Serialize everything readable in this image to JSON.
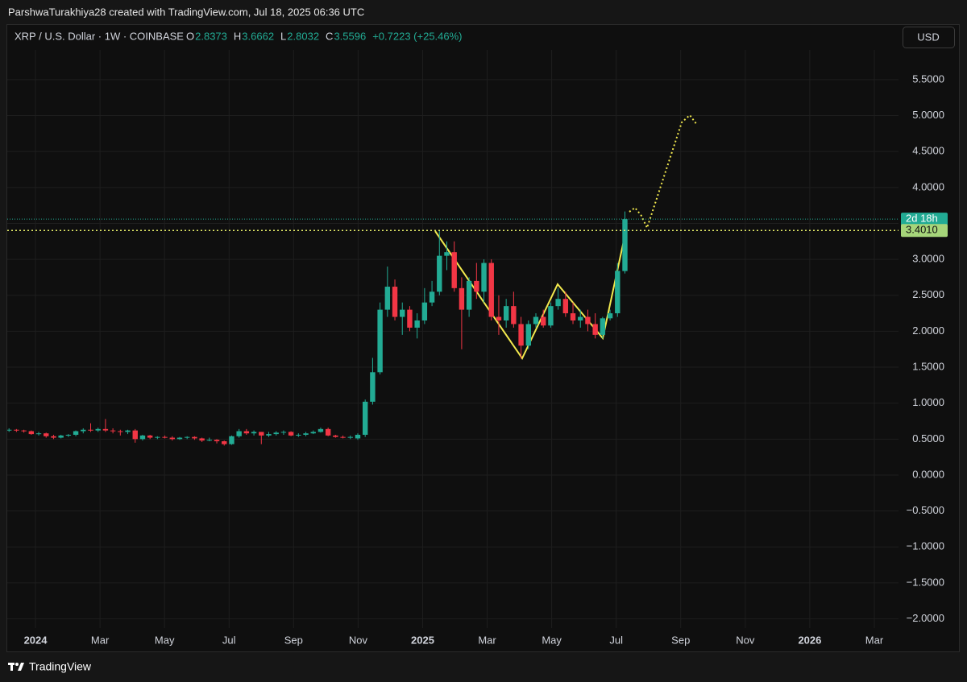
{
  "header": {
    "credit": "ParshwaTurakhiya28 created with TradingView.com, Jul 18, 2025 06:36 UTC"
  },
  "chart_data": {
    "type": "candlestick",
    "symbol": "XRP / U.S. Dollar · 1W · COINBASE",
    "ohlc_labels": [
      "O",
      "H",
      "L",
      "C"
    ],
    "change": "+0.7223 (+25.46%)",
    "currency": "USD",
    "countdown": "2d 18h",
    "level": {
      "value": 3.401,
      "label": "3.4010"
    },
    "up_color": "#22ab94",
    "down_color": "#f23645",
    "grid": true,
    "xlim": [
      -0.875,
      26.75
    ],
    "xticks": [
      {
        "value": 0,
        "label": "2024"
      },
      {
        "value": 2,
        "label": "Mar"
      },
      {
        "value": 4,
        "label": "May"
      },
      {
        "value": 6,
        "label": "Jul"
      },
      {
        "value": 8,
        "label": "Sep"
      },
      {
        "value": 10,
        "label": "Nov"
      },
      {
        "value": 12,
        "label": "2025"
      },
      {
        "value": 14,
        "label": "Mar"
      },
      {
        "value": 16,
        "label": "May"
      },
      {
        "value": 18,
        "label": "Jul"
      },
      {
        "value": 20,
        "label": "Sep"
      },
      {
        "value": 22,
        "label": "Nov"
      },
      {
        "value": 24,
        "label": "2026"
      },
      {
        "value": 26,
        "label": "Mar"
      }
    ],
    "ylim": [
      -2.128,
      5.913
    ],
    "yticks": [
      {
        "value": 5.5,
        "label": "5.5000"
      },
      {
        "value": 5,
        "label": "5.0000"
      },
      {
        "value": 4.5,
        "label": "4.5000"
      },
      {
        "value": 4,
        "label": "4.0000"
      },
      {
        "value": 3.5,
        "label": "3.5000"
      },
      {
        "value": 3,
        "label": "3.0000"
      },
      {
        "value": 2.5,
        "label": "2.5000"
      },
      {
        "value": 2,
        "label": "2.0000"
      },
      {
        "value": 1.5,
        "label": "1.5000"
      },
      {
        "value": 1,
        "label": "1.0000"
      },
      {
        "value": 0.5,
        "label": "0.5000"
      },
      {
        "value": 0,
        "label": "0.0000"
      },
      {
        "value": -0.5,
        "label": "−0.5000"
      },
      {
        "value": -1,
        "label": "−1.0000"
      },
      {
        "value": -1.5,
        "label": "−1.5000"
      },
      {
        "value": -2,
        "label": "−2.0000"
      }
    ],
    "x": [
      -0.82,
      -0.59,
      -0.36,
      -0.13,
      0.1,
      0.33,
      0.56,
      0.79,
      1.02,
      1.25,
      1.48,
      1.71,
      1.94,
      2.17,
      2.4,
      2.63,
      2.86,
      3.09,
      3.32,
      3.55,
      3.78,
      4.01,
      4.24,
      4.47,
      4.7,
      4.93,
      5.16,
      5.39,
      5.62,
      5.85,
      6.08,
      6.31,
      6.54,
      6.77,
      7.0,
      7.23,
      7.46,
      7.69,
      7.92,
      8.15,
      8.38,
      8.61,
      8.84,
      9.07,
      9.3,
      9.53,
      9.76,
      9.99,
      10.22,
      10.45,
      10.68,
      10.91,
      11.14,
      11.37,
      11.6,
      11.83,
      12.06,
      12.29,
      12.52,
      12.75,
      12.98,
      13.21,
      13.44,
      13.67,
      13.9,
      14.13,
      14.36,
      14.59,
      14.82,
      15.05,
      15.28,
      15.51,
      15.74,
      15.97,
      16.2,
      16.43,
      16.66,
      16.89,
      17.12,
      17.35,
      17.58,
      17.81,
      18.04,
      18.27
    ],
    "open": [
      0.62,
      0.63,
      0.62,
      0.61,
      0.57,
      0.58,
      0.54,
      0.52,
      0.55,
      0.56,
      0.61,
      0.63,
      0.62,
      0.64,
      0.62,
      0.61,
      0.6,
      0.62,
      0.5,
      0.55,
      0.52,
      0.53,
      0.52,
      0.5,
      0.52,
      0.53,
      0.51,
      0.48,
      0.49,
      0.47,
      0.43,
      0.54,
      0.61,
      0.58,
      0.6,
      0.55,
      0.57,
      0.59,
      0.6,
      0.55,
      0.56,
      0.58,
      0.6,
      0.64,
      0.55,
      0.53,
      0.52,
      0.51,
      0.56,
      1.02,
      1.43,
      2.3,
      2.62,
      2.2,
      2.3,
      2.05,
      2.15,
      2.4,
      2.55,
      3.05,
      3.1,
      2.6,
      2.3,
      2.7,
      2.55,
      2.95,
      2.2,
      2.15,
      2.35,
      2.1,
      1.8,
      2.1,
      2.2,
      2.08,
      2.35,
      2.45,
      2.25,
      2.15,
      2.2,
      2.1,
      1.95,
      2.18,
      2.25,
      2.8373
    ],
    "high": [
      0.65,
      0.64,
      0.63,
      0.62,
      0.6,
      0.59,
      0.56,
      0.56,
      0.57,
      0.62,
      0.65,
      0.72,
      0.66,
      0.78,
      0.65,
      0.63,
      0.63,
      0.64,
      0.56,
      0.56,
      0.54,
      0.55,
      0.54,
      0.53,
      0.54,
      0.54,
      0.52,
      0.52,
      0.5,
      0.48,
      0.55,
      0.64,
      0.64,
      0.62,
      0.6,
      0.6,
      0.61,
      0.62,
      0.61,
      0.58,
      0.6,
      0.62,
      0.66,
      0.66,
      0.56,
      0.55,
      0.55,
      0.58,
      1.05,
      1.63,
      2.4,
      2.9,
      2.72,
      2.4,
      2.35,
      2.25,
      2.6,
      2.7,
      3.4,
      3.25,
      3.25,
      2.75,
      2.75,
      2.95,
      3.0,
      3.0,
      2.5,
      2.45,
      2.55,
      2.2,
      2.15,
      2.25,
      2.3,
      2.4,
      2.6,
      2.55,
      2.4,
      2.3,
      2.3,
      2.25,
      2.2,
      2.3,
      2.95,
      3.6662
    ],
    "low": [
      0.6,
      0.6,
      0.59,
      0.56,
      0.55,
      0.52,
      0.5,
      0.51,
      0.53,
      0.54,
      0.58,
      0.6,
      0.6,
      0.6,
      0.58,
      0.55,
      0.57,
      0.45,
      0.48,
      0.5,
      0.5,
      0.51,
      0.48,
      0.49,
      0.5,
      0.49,
      0.46,
      0.47,
      0.44,
      0.41,
      0.42,
      0.52,
      0.56,
      0.55,
      0.43,
      0.53,
      0.55,
      0.56,
      0.54,
      0.53,
      0.54,
      0.57,
      0.59,
      0.54,
      0.52,
      0.51,
      0.5,
      0.49,
      0.53,
      0.98,
      1.4,
      2.2,
      2.15,
      1.95,
      2.0,
      1.9,
      2.1,
      2.35,
      2.5,
      2.85,
      2.55,
      1.75,
      2.2,
      2.45,
      2.4,
      2.15,
      1.95,
      2.05,
      2.05,
      1.62,
      1.75,
      2.05,
      2.05,
      2.05,
      2.3,
      2.2,
      2.1,
      2.05,
      2.0,
      1.9,
      1.9,
      2.15,
      2.2,
      2.8032
    ],
    "close": [
      0.63,
      0.62,
      0.61,
      0.57,
      0.58,
      0.54,
      0.52,
      0.55,
      0.56,
      0.61,
      0.63,
      0.62,
      0.64,
      0.62,
      0.61,
      0.6,
      0.62,
      0.5,
      0.55,
      0.52,
      0.53,
      0.52,
      0.5,
      0.52,
      0.53,
      0.51,
      0.48,
      0.49,
      0.47,
      0.43,
      0.54,
      0.61,
      0.58,
      0.6,
      0.55,
      0.57,
      0.59,
      0.6,
      0.55,
      0.56,
      0.58,
      0.6,
      0.64,
      0.55,
      0.53,
      0.52,
      0.53,
      0.56,
      1.02,
      1.43,
      2.3,
      2.62,
      2.2,
      2.3,
      2.05,
      2.15,
      2.4,
      2.55,
      3.05,
      3.1,
      2.6,
      2.3,
      2.7,
      2.55,
      2.95,
      2.2,
      2.15,
      2.35,
      2.1,
      1.8,
      2.1,
      2.2,
      2.08,
      2.35,
      2.45,
      2.25,
      2.15,
      2.2,
      2.1,
      1.95,
      2.18,
      2.25,
      2.84,
      3.5596
    ]
  },
  "footer": {
    "brand": "TradingView"
  }
}
